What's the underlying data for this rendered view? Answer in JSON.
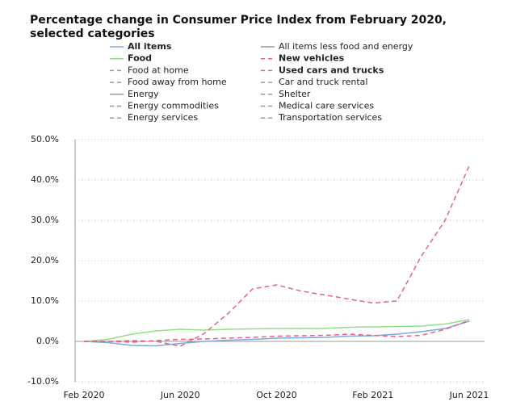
{
  "chart_data": {
    "type": "line",
    "title": "Percentage change in Consumer Price Index from February 2020, selected categories",
    "categories": [
      "Feb 2020",
      null,
      null,
      null,
      "Jun 2020",
      null,
      null,
      null,
      "Oct 2020",
      null,
      null,
      null,
      "Feb 2021",
      null,
      null,
      null,
      "Jun 2021"
    ],
    "ylim": [
      -10,
      50
    ],
    "yticks": [
      {
        "value": -10,
        "label": "-10.0%"
      },
      {
        "value": 0,
        "label": "0.0%"
      },
      {
        "value": 10,
        "label": "10.0%"
      },
      {
        "value": 20,
        "label": "20.0%"
      },
      {
        "value": 30,
        "label": "30.0%"
      },
      {
        "value": 40,
        "label": "40.0%"
      },
      {
        "value": 50,
        "label": "50.0%"
      }
    ],
    "grid": true,
    "series": [
      {
        "name": "All items",
        "color": "#7ea8e0",
        "dash": false,
        "hidden": false,
        "values": [
          0,
          -0.3,
          -1.0,
          -1.1,
          -0.5,
          0,
          0.3,
          0.5,
          0.8,
          0.9,
          1.0,
          1.3,
          1.4,
          1.8,
          2.4,
          3.2,
          5.0
        ]
      },
      {
        "name": "All items less food and energy",
        "color": "#999999",
        "dash": false,
        "hidden": true
      },
      {
        "name": "Food",
        "color": "#92e086",
        "dash": false,
        "hidden": false,
        "values": [
          0,
          0.5,
          1.8,
          2.6,
          3.0,
          2.8,
          3.0,
          3.1,
          3.2,
          3.2,
          3.2,
          3.5,
          3.6,
          3.7,
          3.8,
          4.3,
          5.4
        ]
      },
      {
        "name": "New vehicles",
        "color": "#e8628a",
        "dash": true,
        "hidden": false,
        "values": [
          0,
          0,
          -0.2,
          0.2,
          0.5,
          0.6,
          0.8,
          1.0,
          1.3,
          1.4,
          1.5,
          1.8,
          1.5,
          1.2,
          1.5,
          3.0,
          5.2
        ]
      },
      {
        "name": "Food at home",
        "color": "#999999",
        "dash": true,
        "hidden": true
      },
      {
        "name": "Used cars and trucks",
        "color": "#e8628a",
        "dash": true,
        "hidden": false,
        "values": [
          0,
          0,
          0.2,
          0,
          -1.2,
          2.0,
          7.0,
          13.0,
          14.0,
          12.5,
          11.5,
          10.5,
          9.5,
          10.0,
          21.0,
          30.0,
          43.5
        ]
      },
      {
        "name": "Food away from home",
        "color": "#999999",
        "dash": true,
        "hidden": true
      },
      {
        "name": "Car and truck rental",
        "color": "#999999",
        "dash": true,
        "hidden": true
      },
      {
        "name": "Energy",
        "color": "#999999",
        "dash": false,
        "hidden": true
      },
      {
        "name": "Shelter",
        "color": "#999999",
        "dash": true,
        "hidden": true
      },
      {
        "name": "Energy commodities",
        "color": "#999999",
        "dash": true,
        "hidden": true
      },
      {
        "name": "Medical care services",
        "color": "#999999",
        "dash": true,
        "hidden": true
      },
      {
        "name": "Energy services",
        "color": "#999999",
        "dash": true,
        "hidden": true
      },
      {
        "name": "Transportation services",
        "color": "#999999",
        "dash": true,
        "hidden": true
      }
    ]
  }
}
